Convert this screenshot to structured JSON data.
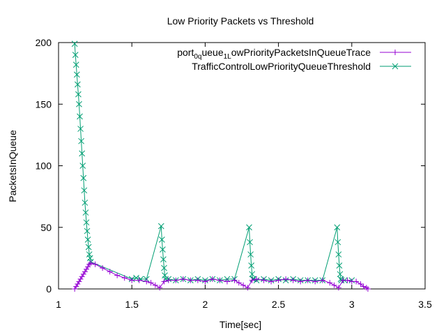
{
  "chart_data": {
    "type": "line",
    "title": "Low Priority Packets vs Threshold",
    "xlabel": "Time[sec]",
    "ylabel": "PacketsInQueue",
    "xlim": [
      1,
      3.5
    ],
    "ylim": [
      0,
      200
    ],
    "x_ticks": [
      "1",
      "1.5",
      "2",
      "2.5",
      "3",
      "3.5"
    ],
    "y_ticks": [
      "0",
      "50",
      "100",
      "150",
      "200"
    ],
    "grid": false,
    "legend_position": "top-right",
    "series": [
      {
        "name": "port_0_queue_1_LowPriorityPacketsInQueueTrace",
        "legend_parts": [
          [
            "port",
            "n"
          ],
          [
            "0",
            "sub"
          ],
          [
            "q",
            "sub"
          ],
          [
            "ueue",
            "n"
          ],
          [
            "1",
            "sub"
          ],
          [
            "L",
            "sub"
          ],
          [
            "owPriorityPacketsInQueueTrace",
            "n"
          ]
        ],
        "color": "#9400d3",
        "marker": "plus",
        "x": [
          1.11,
          1.12,
          1.13,
          1.14,
          1.15,
          1.16,
          1.17,
          1.18,
          1.19,
          1.2,
          1.21,
          1.22,
          1.25,
          1.3,
          1.35,
          1.4,
          1.45,
          1.5,
          1.55,
          1.6,
          1.63,
          1.66,
          1.69,
          1.72,
          1.75,
          1.8,
          1.85,
          1.9,
          1.95,
          2.0,
          2.05,
          2.1,
          2.15,
          2.2,
          2.23,
          2.26,
          2.29,
          2.32,
          2.35,
          2.4,
          2.45,
          2.5,
          2.55,
          2.6,
          2.65,
          2.7,
          2.75,
          2.8,
          2.85,
          2.88,
          2.91,
          2.94,
          2.97,
          3.0,
          3.03,
          3.06,
          3.08,
          3.1,
          3.11
        ],
        "y": [
          0,
          2,
          4,
          6,
          8,
          10,
          12,
          14,
          16,
          18,
          20,
          21,
          20,
          17,
          14,
          11,
          9,
          7,
          7,
          6,
          5,
          3,
          1,
          6,
          7,
          7,
          8,
          7,
          7,
          6,
          8,
          7,
          6,
          7,
          5,
          3,
          1,
          7,
          8,
          7,
          6,
          7,
          8,
          7,
          6,
          7,
          6,
          7,
          5,
          3,
          1,
          7,
          7,
          6,
          6,
          4,
          2,
          1,
          0
        ]
      },
      {
        "name": "TrafficControlLowPriorityQueueThreshold",
        "color": "#009e73",
        "marker": "cross",
        "x": [
          1.11,
          1.115,
          1.12,
          1.125,
          1.13,
          1.135,
          1.14,
          1.145,
          1.15,
          1.155,
          1.16,
          1.165,
          1.17,
          1.175,
          1.18,
          1.185,
          1.19,
          1.195,
          1.2,
          1.205,
          1.21,
          1.215,
          1.22,
          1.5,
          1.53,
          1.56,
          1.6,
          1.7,
          1.705,
          1.71,
          1.715,
          1.72,
          1.725,
          1.73,
          1.75,
          1.8,
          1.85,
          1.9,
          1.95,
          2.0,
          2.05,
          2.1,
          2.15,
          2.2,
          2.3,
          2.305,
          2.31,
          2.315,
          2.32,
          2.325,
          2.33,
          2.35,
          2.4,
          2.45,
          2.5,
          2.55,
          2.6,
          2.65,
          2.7,
          2.75,
          2.8,
          2.9,
          2.905,
          2.91,
          2.915,
          2.92,
          2.925,
          2.93,
          2.95,
          3.0
        ],
        "y": [
          199,
          190,
          182,
          174,
          166,
          158,
          150,
          140,
          130,
          120,
          110,
          100,
          90,
          80,
          70,
          62,
          54,
          47,
          40,
          34,
          28,
          25,
          22,
          8,
          9,
          8,
          8,
          51,
          40,
          32,
          24,
          17,
          11,
          8,
          8,
          7,
          8,
          7,
          8,
          7,
          8,
          7,
          8,
          8,
          50,
          38,
          28,
          19,
          12,
          8,
          8,
          7,
          8,
          7,
          8,
          7,
          8,
          7,
          7,
          7,
          7,
          50,
          38,
          28,
          19,
          12,
          8,
          7,
          7,
          7
        ]
      }
    ]
  }
}
